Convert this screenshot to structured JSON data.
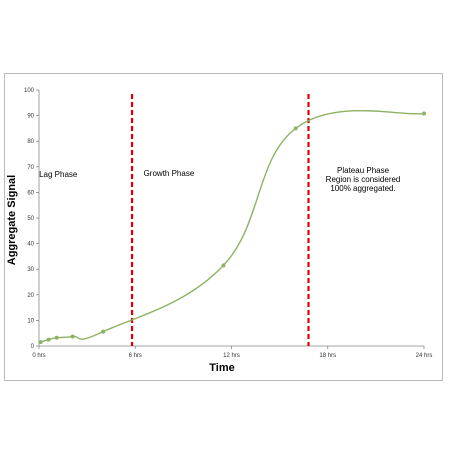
{
  "chart_data": {
    "type": "line",
    "title": "",
    "xlabel": "Time",
    "ylabel": "Aggregate Signal",
    "x_unit": "hrs",
    "xlim": [
      0,
      24
    ],
    "ylim": [
      0,
      100
    ],
    "x_ticks": [
      0,
      6,
      12,
      18,
      24
    ],
    "x_tick_labels": [
      "0 hrs",
      "6 hrs",
      "12 hrs",
      "18 hrs",
      "24 hrs"
    ],
    "y_ticks": [
      0,
      10,
      20,
      30,
      40,
      50,
      60,
      70,
      80,
      90,
      100
    ],
    "y_tick_labels": [
      "0",
      "10",
      "20",
      "30",
      "40",
      "50",
      "60",
      "70",
      "80",
      "90",
      "100"
    ],
    "grid": false,
    "legend": "none",
    "series": [
      {
        "color": "#8db360",
        "marker_color": "#8db360",
        "points": [
          {
            "x": 0.1,
            "y": 1.5
          },
          {
            "x": 0.6,
            "y": 2.5
          },
          {
            "x": 1.1,
            "y": 3.2
          },
          {
            "x": 2.1,
            "y": 3.7
          },
          {
            "x": 4.0,
            "y": 5.6
          },
          {
            "x": 11.5,
            "y": 31.5
          },
          {
            "x": 16.0,
            "y": 85.0
          },
          {
            "x": 24.0,
            "y": 90.8
          }
        ]
      }
    ],
    "phase_lines": [
      {
        "x": 5.8,
        "color": "#e00000"
      },
      {
        "x": 16.8,
        "color": "#e00000"
      }
    ],
    "annotations": [
      {
        "lines": [
          "Lag Phase"
        ],
        "x": 1.2,
        "y": 66
      },
      {
        "lines": [
          "Growth Phase"
        ],
        "x": 8.1,
        "y": 66.5
      },
      {
        "lines": [
          "Plateau Phase",
          "Region is considered",
          "100% aggregated."
        ],
        "x": 20.2,
        "y": 67.5
      }
    ]
  }
}
